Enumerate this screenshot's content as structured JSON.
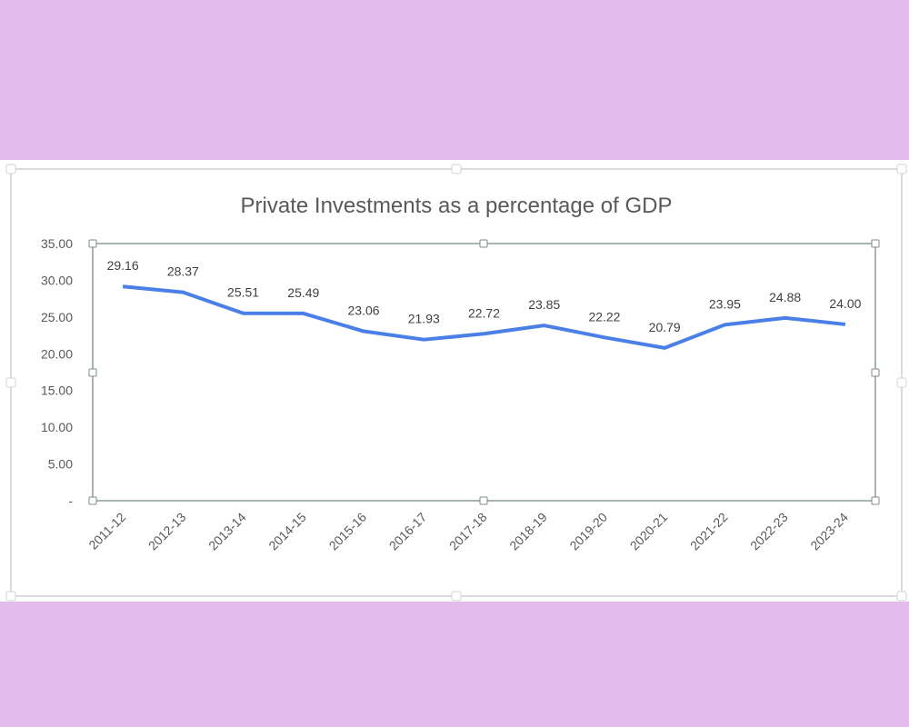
{
  "chart_data": {
    "type": "line",
    "title": "Private Investments as a percentage of GDP",
    "xlabel": "",
    "ylabel": "",
    "categories": [
      "2011-12",
      "2012-13",
      "2013-14",
      "2014-15",
      "2015-16",
      "2016-17",
      "2017-18",
      "2018-19",
      "2019-20",
      "2020-21",
      "2021-22",
      "2022-23",
      "2023-24"
    ],
    "series": [
      {
        "values": [
          29.16,
          28.37,
          25.51,
          25.49,
          23.06,
          21.93,
          22.72,
          23.85,
          22.22,
          20.79,
          23.95,
          24.88,
          24.0
        ],
        "labels": [
          "29.16",
          "28.37",
          "25.51",
          "25.49",
          "23.06",
          "21.93",
          "22.72",
          "23.85",
          "22.22",
          "20.79",
          "23.95",
          "24.88",
          "24.00"
        ]
      }
    ],
    "ylim": [
      0,
      35
    ],
    "yticks": [
      0,
      5,
      10,
      15,
      20,
      25,
      30,
      35
    ],
    "ytick_labels": [
      "-",
      "5.00",
      "10.00",
      "15.00",
      "20.00",
      "25.00",
      "30.00",
      "35.00"
    ],
    "grid": false,
    "legend": "none",
    "line_color": "#4a7fe8",
    "background_color": "#e4bbed"
  }
}
